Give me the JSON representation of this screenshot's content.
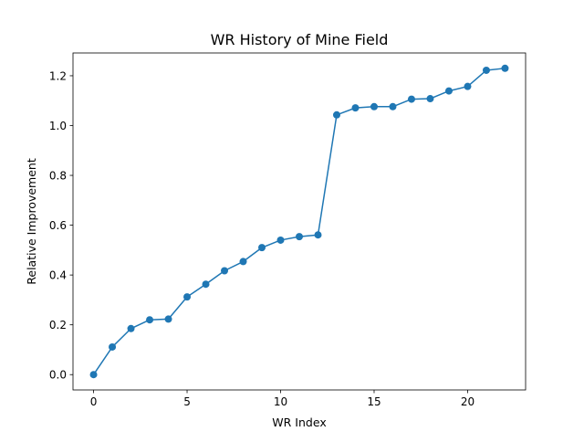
{
  "chart_data": {
    "type": "line",
    "title": "WR History of Mine Field",
    "xlabel": "WR Index",
    "ylabel": "Relative Improvement",
    "xlim": [
      -1.1,
      23.1
    ],
    "ylim": [
      -0.0615,
      1.2915
    ],
    "x_ticks": [
      0,
      5,
      10,
      15,
      20
    ],
    "y_ticks": [
      0.0,
      0.2,
      0.4,
      0.6,
      0.8,
      1.0,
      1.2
    ],
    "x_tick_labels": [
      "0",
      "5",
      "10",
      "15",
      "20"
    ],
    "y_tick_labels": [
      "0.0",
      "0.2",
      "0.4",
      "0.6",
      "0.8",
      "1.0",
      "1.2"
    ],
    "grid": false,
    "legend": "none",
    "series": [
      {
        "color": "#1f77b4",
        "marker": "circle",
        "x": [
          0,
          1,
          2,
          3,
          4,
          5,
          6,
          7,
          8,
          9,
          10,
          11,
          12,
          13,
          14,
          15,
          16,
          17,
          18,
          19,
          20,
          21,
          22
        ],
        "values": [
          0.0,
          0.111,
          0.185,
          0.22,
          0.223,
          0.312,
          0.363,
          0.417,
          0.454,
          0.51,
          0.54,
          0.554,
          0.561,
          1.043,
          1.071,
          1.076,
          1.076,
          1.106,
          1.108,
          1.139,
          1.157,
          1.222,
          1.23
        ]
      }
    ]
  }
}
